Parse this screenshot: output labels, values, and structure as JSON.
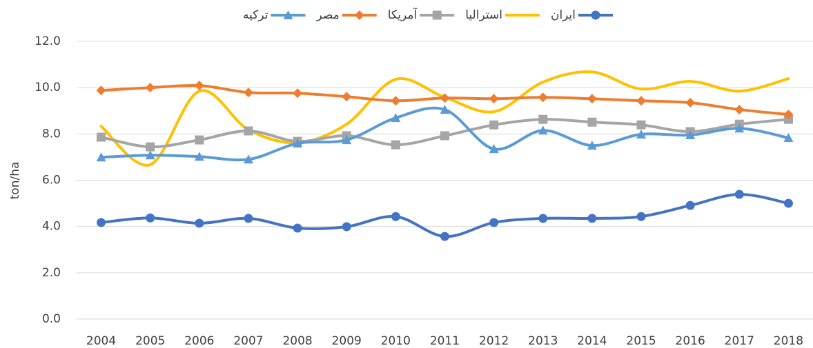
{
  "chart_data": {
    "type": "line",
    "y_label": "ton/ha",
    "categories": [
      "2004",
      "2005",
      "2006",
      "2007",
      "2008",
      "2009",
      "2010",
      "2011",
      "2012",
      "2013",
      "2014",
      "2015",
      "2016",
      "2017",
      "2018"
    ],
    "ylim": [
      0,
      12
    ],
    "yticks": [
      {
        "value": 0,
        "label": "0.0"
      },
      {
        "value": 2,
        "label": "2.0"
      },
      {
        "value": 4,
        "label": "4.0"
      },
      {
        "value": 6,
        "label": "6.0"
      },
      {
        "value": 8,
        "label": "8.0"
      },
      {
        "value": 10,
        "label": "10.0"
      },
      {
        "value": 12,
        "label": "12.0"
      }
    ],
    "grid": true,
    "smooth": true,
    "legend": "top",
    "series": [
      {
        "name": "ایران",
        "color": "#4472c4",
        "marker": "circle",
        "values": [
          4.17,
          4.37,
          4.14,
          4.35,
          3.93,
          3.99,
          4.43,
          3.57,
          4.17,
          4.35,
          4.35,
          4.43,
          4.91,
          5.39,
          5.0
        ]
      },
      {
        "name": "استرالیا",
        "color": "#ffc000",
        "marker": "none",
        "values": [
          8.33,
          6.67,
          9.85,
          8.18,
          7.62,
          8.42,
          10.36,
          9.58,
          8.96,
          10.24,
          10.68,
          9.94,
          10.27,
          9.85,
          10.39
        ]
      },
      {
        "name": "آمریکا",
        "color": "#a5a5a5",
        "marker": "square",
        "values": [
          7.86,
          7.44,
          7.74,
          8.13,
          7.68,
          7.92,
          7.53,
          7.92,
          8.39,
          8.63,
          8.51,
          8.39,
          8.1,
          8.42,
          8.63
        ]
      },
      {
        "name": "مصر",
        "color": "#ed7d31",
        "marker": "diamond",
        "values": [
          9.88,
          10.0,
          10.09,
          9.79,
          9.76,
          9.61,
          9.43,
          9.55,
          9.52,
          9.58,
          9.52,
          9.43,
          9.35,
          9.05,
          8.84
        ]
      },
      {
        "name": "ترکیه",
        "color": "#5b9bd5",
        "marker": "triangle",
        "values": [
          6.99,
          7.08,
          7.02,
          6.9,
          7.59,
          7.74,
          8.69,
          9.05,
          7.35,
          8.15,
          7.5,
          7.98,
          7.95,
          8.24,
          7.83
        ]
      }
    ]
  }
}
